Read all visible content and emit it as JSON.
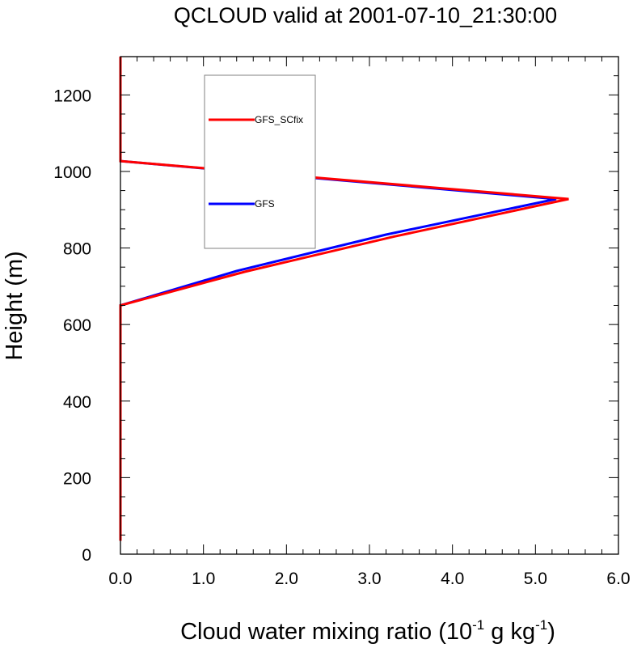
{
  "chart_data": {
    "type": "line",
    "title": "QCLOUD valid at 2001-07-10_21:30:00",
    "xlabel": {
      "main": "Cloud water mixing ratio (10",
      "exp1": "-1",
      "mid": " g kg",
      "exp2": "-1",
      "end": ")"
    },
    "ylabel": "Height (m)",
    "xlim": [
      0,
      6
    ],
    "ylim": [
      0,
      1300
    ],
    "x_ticks": [
      0,
      1,
      2,
      3,
      4,
      5,
      6
    ],
    "x_tick_labels": [
      "0.0",
      "1.0",
      "2.0",
      "3.0",
      "4.0",
      "5.0",
      "6.0"
    ],
    "y_ticks": [
      0,
      200,
      400,
      600,
      800,
      1000,
      1200
    ],
    "y_tick_labels": [
      "0",
      "200",
      "400",
      "600",
      "800",
      "1000",
      "1200"
    ],
    "grid": false,
    "legend_position": "upper-center",
    "series": [
      {
        "name": "GFS",
        "color": "#0000ff",
        "points": [
          [
            0,
            35
          ],
          [
            0,
            650
          ],
          [
            1.4,
            740
          ],
          [
            3.2,
            835
          ],
          [
            5.25,
            928
          ],
          [
            0,
            1027
          ],
          [
            0,
            1300
          ]
        ]
      },
      {
        "name": "GFS_SCfix",
        "color": "#ff0000",
        "points": [
          [
            0,
            35
          ],
          [
            0,
            650
          ],
          [
            1.5,
            738
          ],
          [
            3.3,
            830
          ],
          [
            5.4,
            928
          ],
          [
            0,
            1027
          ],
          [
            0,
            1300
          ]
        ]
      }
    ]
  }
}
